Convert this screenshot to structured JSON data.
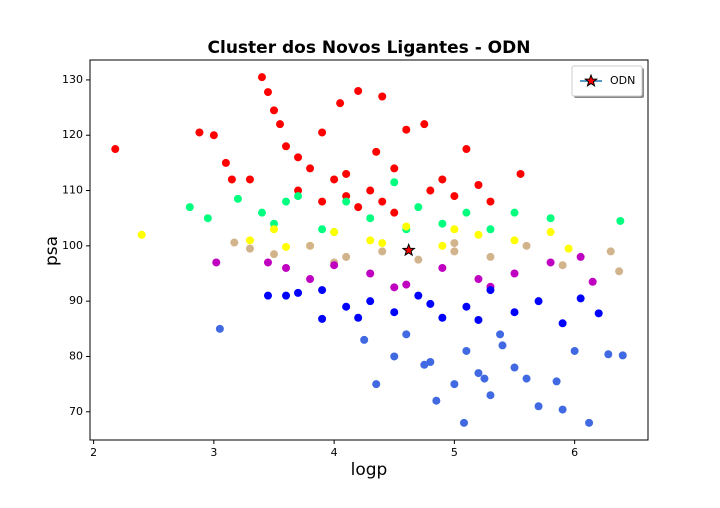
{
  "chart_data": {
    "type": "scatter",
    "title": "Cluster dos Novos Ligantes - ODN",
    "xlabel": "logp",
    "ylabel": "psa",
    "xlim": [
      1.97,
      6.61
    ],
    "ylim": [
      64.9,
      133.6
    ],
    "xticks": [
      2,
      3,
      4,
      5,
      6
    ],
    "yticks": [
      70,
      80,
      90,
      100,
      110,
      120,
      130
    ],
    "legend_position": "upper right",
    "clusters": [
      {
        "color": "#ff0000",
        "x": [
          2.18,
          2.88,
          3.0,
          3.1,
          3.15,
          3.3,
          3.4,
          3.45,
          3.5,
          3.55,
          3.6,
          3.7,
          3.8,
          3.9,
          4.0,
          4.05,
          4.1,
          4.2,
          4.3,
          4.35,
          4.4,
          4.5,
          4.6,
          4.75,
          4.9,
          5.0,
          5.1,
          5.2,
          5.3,
          5.55,
          3.9,
          4.2,
          4.5,
          4.8,
          3.7,
          4.1,
          4.4
        ],
        "y": [
          117.5,
          120.5,
          120,
          115,
          112,
          112,
          130.5,
          127.8,
          124.5,
          122,
          118,
          116,
          114,
          120.5,
          112,
          125.8,
          113,
          128,
          110,
          117,
          127,
          114,
          121,
          122,
          112,
          109,
          117.5,
          111,
          108,
          113,
          108,
          107,
          106,
          110,
          110,
          109,
          108
        ]
      },
      {
        "color": "#00ff7f",
        "x": [
          2.8,
          2.95,
          3.2,
          3.4,
          3.5,
          3.7,
          3.9,
          4.1,
          4.3,
          4.5,
          4.7,
          4.9,
          5.1,
          5.3,
          5.5,
          5.8,
          6.38,
          4.0,
          4.6,
          3.6
        ],
        "y": [
          107,
          105,
          108.5,
          106,
          104,
          109,
          103,
          108,
          105,
          111.5,
          107,
          104,
          106,
          103,
          106,
          105,
          104.5,
          102.5,
          103,
          108
        ]
      },
      {
        "color": "#ffff00",
        "x": [
          2.4,
          3.3,
          3.5,
          3.8,
          4.0,
          4.3,
          4.6,
          4.9,
          5.2,
          5.5,
          5.8,
          5.95,
          3.6,
          4.4,
          5.0
        ],
        "y": [
          102,
          101,
          103,
          100,
          102.5,
          101,
          103.5,
          100,
          102,
          101,
          102.5,
          99.5,
          99.8,
          100.5,
          103
        ]
      },
      {
        "color": "#d2b48c",
        "x": [
          3.17,
          3.3,
          3.5,
          3.8,
          4.1,
          4.4,
          4.7,
          5.0,
          5.3,
          5.6,
          5.9,
          6.3,
          6.37,
          4.0,
          5.0
        ],
        "y": [
          100.6,
          99.5,
          98.5,
          100,
          98,
          99,
          97.5,
          99,
          98,
          100,
          96.5,
          99,
          95.4,
          97,
          100.5
        ]
      },
      {
        "color": "#c000c0",
        "x": [
          3.02,
          3.45,
          3.6,
          3.8,
          4.0,
          4.3,
          4.6,
          4.9,
          5.2,
          5.5,
          5.8,
          6.05,
          6.15,
          4.5,
          5.3
        ],
        "y": [
          97,
          97,
          96,
          94,
          96.5,
          95,
          93,
          96,
          94,
          95,
          97,
          98,
          93.5,
          92.5,
          92.6
        ]
      },
      {
        "color": "#0000ff",
        "x": [
          3.45,
          3.6,
          3.7,
          3.9,
          3.9,
          4.1,
          4.3,
          4.5,
          4.7,
          4.9,
          5.1,
          5.3,
          5.5,
          5.7,
          5.9,
          6.05,
          6.2,
          4.2,
          4.8,
          5.2
        ],
        "y": [
          91,
          91,
          91.5,
          92,
          86.8,
          89,
          90,
          88,
          91,
          87,
          89,
          92,
          88,
          90,
          86,
          90.5,
          87.8,
          87,
          89.5,
          86.6
        ]
      },
      {
        "color": "#4169e1",
        "x": [
          3.05,
          4.35,
          4.25,
          4.5,
          4.6,
          4.8,
          4.85,
          5.0,
          5.1,
          5.2,
          5.3,
          5.4,
          5.5,
          5.6,
          5.7,
          5.85,
          5.9,
          6.0,
          6.12,
          6.28,
          6.4,
          5.08,
          5.38,
          4.75,
          5.25
        ],
        "y": [
          85,
          75,
          83,
          80,
          84,
          79,
          72,
          75,
          81,
          77,
          73,
          82,
          78,
          76,
          71,
          75.5,
          70.4,
          81,
          68,
          80.4,
          80.2,
          68,
          84,
          78.5,
          76
        ]
      }
    ],
    "highlight": {
      "name": "ODN",
      "color": "#ff0000",
      "marker": "star",
      "x": [
        4.62
      ],
      "y": [
        99.2
      ]
    }
  }
}
